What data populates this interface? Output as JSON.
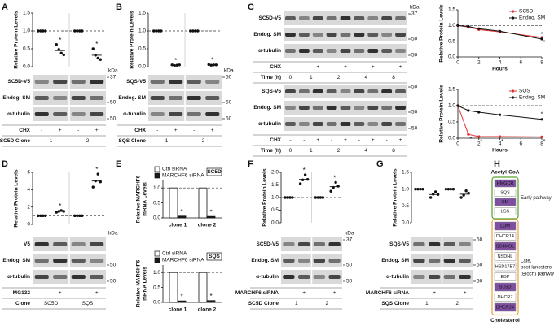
{
  "panel_letters": [
    "A",
    "B",
    "C",
    "D",
    "E",
    "F",
    "G",
    "H"
  ],
  "chart_data": [
    {
      "type": "dot",
      "ylabel": "Relative Protein Levels",
      "ylim": [
        0,
        1.5
      ],
      "yticks": [
        {
          "value": 0,
          "label": "0.0"
        },
        {
          "value": 0.5,
          "label": "0.5"
        },
        {
          "value": 1,
          "label": "1.0"
        },
        {
          "value": 1.5,
          "label": "1.5"
        }
      ],
      "reference_line": 1,
      "color": "#111111",
      "significance_color": "#e03030",
      "values": [
        1,
        0.45,
        1,
        0.32
      ],
      "points": [
        [
          1,
          1,
          1,
          1
        ],
        [
          0.62,
          0.48,
          0.38,
          0.33
        ],
        [
          1,
          1,
          1,
          1
        ],
        [
          0.5,
          0.32,
          0.24,
          0.2
        ]
      ],
      "significance": [
        null,
        "*",
        null,
        "*"
      ]
    },
    {
      "type": "dot",
      "ylabel": "Relative Protein Levels",
      "ylim": [
        0,
        1.5
      ],
      "yticks": [
        {
          "value": 0,
          "label": "0.0"
        },
        {
          "value": 0.5,
          "label": "0.5"
        },
        {
          "value": 1,
          "label": "1.0"
        },
        {
          "value": 1.5,
          "label": "1.5"
        }
      ],
      "reference_line": 1,
      "color": "#111111",
      "significance_color": "#e03030",
      "values": [
        1,
        0.04,
        1,
        0.05
      ],
      "points": [
        [
          1,
          1,
          1,
          1
        ],
        [
          0.05,
          0.03,
          0.04,
          0.05
        ],
        [
          1,
          1,
          1,
          1
        ],
        [
          0.06,
          0.04,
          0.05,
          0.05
        ]
      ],
      "significance": [
        null,
        "*",
        null,
        "*"
      ]
    },
    {
      "type": "line",
      "xlabel": "Hours",
      "ylabel": "Relative Protein Levels",
      "xlim": [
        0,
        8
      ],
      "xticks": [
        0,
        2,
        4,
        6,
        8
      ],
      "ylim": [
        0,
        1.5
      ],
      "yticks": [
        {
          "value": 0,
          "label": "0.0"
        },
        {
          "value": 0.5,
          "label": "0.5"
        },
        {
          "value": 1,
          "label": "1.0"
        },
        {
          "value": 1.5,
          "label": "1.5"
        }
      ],
      "reference_line": 1,
      "legend": "top-right",
      "x": [
        0,
        1,
        2,
        4,
        8
      ],
      "series": [
        {
          "name": "SC5D",
          "color": "#e03030",
          "values": [
            1,
            0.95,
            0.87,
            0.8,
            0.62
          ],
          "significance": [
            null,
            null,
            null,
            null,
            "*"
          ]
        },
        {
          "name": "Endog. SM",
          "color": "#111111",
          "values": [
            1,
            0.97,
            0.9,
            0.82,
            0.57
          ],
          "significance": [
            null,
            null,
            null,
            null,
            "*"
          ]
        }
      ]
    },
    {
      "type": "line",
      "xlabel": "Hours",
      "ylabel": "Relative Protein Levels",
      "xlim": [
        0,
        8
      ],
      "xticks": [
        0,
        2,
        4,
        6,
        8
      ],
      "ylim": [
        0,
        1.5
      ],
      "yticks": [
        {
          "value": 0,
          "label": "0.0"
        },
        {
          "value": 0.5,
          "label": "0.5"
        },
        {
          "value": 1,
          "label": "1.0"
        },
        {
          "value": 1.5,
          "label": "1.5"
        }
      ],
      "reference_line": 1,
      "legend": "top-right",
      "x": [
        0,
        1,
        2,
        4,
        8
      ],
      "series": [
        {
          "name": "SQS",
          "color": "#e03030",
          "values": [
            1,
            0.12,
            0.05,
            0.05,
            0.04
          ],
          "significance": [
            null,
            "*",
            "*",
            "*",
            "*"
          ]
        },
        {
          "name": "Endog. SM",
          "color": "#111111",
          "values": [
            1,
            0.85,
            0.8,
            0.72,
            0.58
          ],
          "significance": [
            null,
            null,
            null,
            null,
            "*"
          ]
        }
      ]
    },
    {
      "type": "dot",
      "ylabel": "Relative Protein Levels",
      "ylim": [
        0,
        6
      ],
      "yticks": [
        0,
        2,
        4,
        6
      ],
      "reference_line": 1,
      "color": "#111111",
      "significance_color": "#e03030",
      "values": [
        1,
        1.5,
        1,
        5
      ],
      "points": [
        [
          1,
          1,
          1,
          1
        ],
        [
          1.4,
          1.5,
          1.6,
          1.5
        ],
        [
          1,
          1,
          1,
          1
        ],
        [
          4.3,
          5,
          5.8,
          4.9
        ]
      ],
      "significance": [
        null,
        "*",
        null,
        "*"
      ]
    },
    {
      "type": "bar",
      "title": "SC5D",
      "ylabel": [
        "Relative MARCHF6",
        "mRNA Levels"
      ],
      "categories": [
        "clone 1",
        "clone 2"
      ],
      "ylim": [
        0,
        1.25
      ],
      "yticks": [
        {
          "value": 0,
          "label": "0.0"
        },
        {
          "value": 0.5,
          "label": "0.5"
        },
        {
          "value": 1,
          "label": "1.0"
        }
      ],
      "reference_line": 1,
      "legend": "top-left",
      "significance_color": "#e03030",
      "series": [
        {
          "name": "Ctrl siRNA",
          "color": "#ffffff",
          "values": [
            1,
            1
          ]
        },
        {
          "name": "MARCHF6 siRNA",
          "color": "#1a1a1a",
          "values": [
            0.06,
            0.05
          ],
          "significance": [
            "*",
            "*"
          ]
        }
      ]
    },
    {
      "type": "bar",
      "title": "SQS",
      "ylabel": [
        "Relative MARCHF6",
        "mRNA Levels"
      ],
      "categories": [
        "clone 1",
        "clone 2"
      ],
      "ylim": [
        0,
        1.25
      ],
      "yticks": [
        {
          "value": 0,
          "label": "0.0"
        },
        {
          "value": 0.5,
          "label": "0.5"
        },
        {
          "value": 1,
          "label": "1.0"
        }
      ],
      "reference_line": 1,
      "legend": "top-left",
      "significance_color": "#e03030",
      "series": [
        {
          "name": "Ctrl siRNA",
          "color": "#ffffff",
          "values": [
            1,
            1
          ]
        },
        {
          "name": "MARCHF6 siRNA",
          "color": "#1a1a1a",
          "values": [
            0.05,
            0.06
          ],
          "significance": [
            "*",
            "*"
          ]
        }
      ]
    },
    {
      "type": "dot",
      "ylabel": "Relative Protein Levels",
      "ylim": [
        0,
        2
      ],
      "yticks": [
        {
          "value": 0,
          "label": "0.0"
        },
        {
          "value": 0.5,
          "label": "0.5"
        },
        {
          "value": 1,
          "label": "1.0"
        },
        {
          "value": 1.5,
          "label": "1.5"
        },
        {
          "value": 2,
          "label": "2.0"
        }
      ],
      "reference_line": 1,
      "color": "#111111",
      "significance_color": "#e03030",
      "values": [
        1,
        1.72,
        1,
        1.43
      ],
      "points": [
        [
          1,
          1,
          1,
          1
        ],
        [
          1.55,
          1.7,
          1.9,
          1.72
        ],
        [
          1,
          1,
          1,
          1
        ],
        [
          1.25,
          1.4,
          1.6,
          1.45
        ]
      ],
      "significance": [
        null,
        "*",
        null,
        "*"
      ]
    },
    {
      "type": "dot",
      "ylabel": "Relative Protein Levels",
      "ylim": [
        0,
        1.5
      ],
      "yticks": [
        {
          "value": 0,
          "label": "0.0"
        },
        {
          "value": 0.5,
          "label": "0.5"
        },
        {
          "value": 1,
          "label": "1.0"
        },
        {
          "value": 1.5,
          "label": "1.5"
        }
      ],
      "reference_line": 1,
      "color": "#111111",
      "values": [
        1,
        0.84,
        1,
        0.85
      ],
      "points": [
        [
          1,
          1,
          1,
          1
        ],
        [
          0.75,
          0.85,
          0.92,
          0.84
        ],
        [
          1,
          1,
          1,
          1
        ],
        [
          0.75,
          0.82,
          0.95,
          0.88
        ]
      ]
    }
  ],
  "blots": [
    {
      "kda_label": "kDa",
      "rows": [
        {
          "name": "SC5D-V5",
          "marker": 37
        },
        {
          "name": "Endog. SM",
          "marker": 50
        },
        {
          "name": "α-tubulin",
          "marker": 50
        }
      ],
      "conditions": [
        {
          "label": "CHX",
          "cells": [
            "-",
            "+",
            "-",
            "+"
          ]
        },
        {
          "label": "SC5D Clone",
          "cells": [
            1,
            2
          ]
        }
      ]
    },
    {
      "kda_label": "kDa",
      "rows": [
        {
          "name": "SQS-V5",
          "marker": 50
        },
        {
          "name": "Endog. SM",
          "marker": 50
        },
        {
          "name": "α-tubulin",
          "marker": 50
        }
      ],
      "conditions": [
        {
          "label": "CHX",
          "cells": [
            "-",
            "+",
            "-",
            "+"
          ]
        },
        {
          "label": "SQS Clone",
          "cells": [
            1,
            2
          ]
        }
      ]
    },
    {
      "kda_label": "kDa",
      "rows": [
        {
          "name": "SC5D-V5",
          "marker": 37
        },
        {
          "name": "Endog. SM",
          "marker": 50
        },
        {
          "name": "α-tubulin",
          "marker": 50
        }
      ],
      "conditions": [
        {
          "label": "CHX",
          "cells": [
            "-",
            "-",
            "+",
            "-",
            "+",
            "-",
            "+",
            "-",
            "+"
          ]
        },
        {
          "label": "Time (h)",
          "cells": [
            0,
            1,
            2,
            4,
            8
          ]
        }
      ]
    },
    {
      "rows": [
        {
          "name": "SQS-V5",
          "marker": 50
        },
        {
          "name": "Endog. SM",
          "marker": 50
        },
        {
          "name": "α-tubulin",
          "marker": 50
        }
      ],
      "conditions": [
        {
          "label": "CHX",
          "cells": [
            "-",
            "-",
            "+",
            "-",
            "+",
            "-",
            "+",
            "-",
            "+"
          ]
        },
        {
          "label": "Time (h)",
          "cells": [
            0,
            1,
            2,
            4,
            8
          ]
        }
      ]
    },
    {
      "kda_label": "kDa",
      "rows": [
        {
          "name": "V5",
          "marker": null
        },
        {
          "name": "Endog. SM",
          "marker": 50
        },
        {
          "name": "α-tubulin",
          "marker": 50
        }
      ],
      "conditions": [
        {
          "label": "MG132",
          "cells": [
            "-",
            "+",
            "-",
            "+"
          ]
        },
        {
          "label": "Clone",
          "cells": [
            "SC5D",
            "SQS"
          ]
        }
      ]
    },
    {
      "kda_label": "kDa",
      "rows": [
        {
          "name": "SC5D-V5",
          "marker": 37
        },
        {
          "name": "Endog. SM",
          "marker": 50
        },
        {
          "name": "α-tubulin",
          "marker": 50
        }
      ],
      "conditions": [
        {
          "label": "MARCHF6 siRNA",
          "cells": [
            "-",
            "+",
            "-",
            "+"
          ]
        },
        {
          "label": "SC5D Clone",
          "cells": [
            1,
            2
          ]
        }
      ]
    },
    {
      "rows": [
        {
          "name": "SQS-V5",
          "marker": 50
        },
        {
          "name": "Endog. SM",
          "marker": 50
        },
        {
          "name": "α-tubulin",
          "marker": 50
        }
      ],
      "conditions": [
        {
          "label": "MARCHF6 siRNA",
          "cells": [
            "-",
            "+",
            "-",
            "+"
          ]
        },
        {
          "label": "SQS Clone",
          "cells": [
            1,
            2
          ]
        }
      ]
    }
  ],
  "pathway": {
    "top": "Acetyl-CoA",
    "bottom": "Cholesterol",
    "highlight_color": "#7e4fa0",
    "early": {
      "label": "Early pathway",
      "color": "#5aa02c",
      "enzymes": [
        {
          "name": "HMGCR",
          "highlight": true
        },
        {
          "name": "SQS",
          "highlight": false
        },
        {
          "name": "SM",
          "highlight": true
        },
        {
          "name": "LSS",
          "highlight": false
        }
      ]
    },
    "late": {
      "label": [
        "Late,",
        "post-lanosterol",
        "(Bloch) pathway"
      ],
      "color": "#e8a33d",
      "enzymes": [
        {
          "name": "LDM",
          "highlight": true
        },
        {
          "name": "DHCR14",
          "highlight": false
        },
        {
          "name": "SC4MOL",
          "highlight": true
        },
        {
          "name": "NSDHL",
          "highlight": false
        },
        {
          "name": "HSD17B7",
          "highlight": false
        },
        {
          "name": "EBP",
          "highlight": false
        },
        {
          "name": "SC5D",
          "highlight": true
        },
        {
          "name": "DHCR7",
          "highlight": false
        },
        {
          "name": "DHCR24",
          "highlight": true
        }
      ]
    }
  }
}
